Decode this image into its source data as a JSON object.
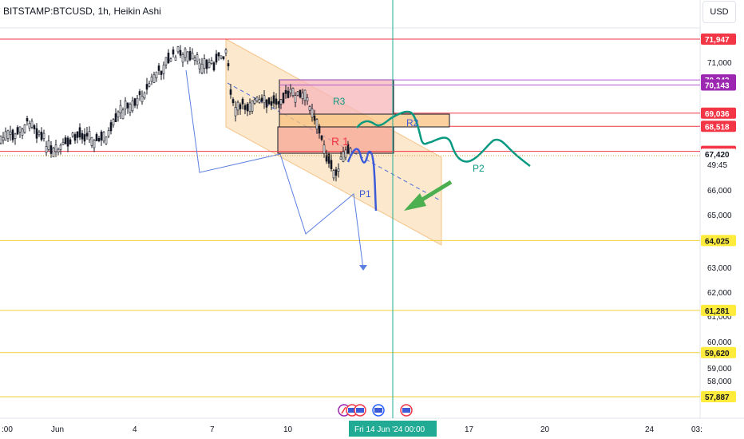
{
  "header": {
    "symbol_title": "BITSTAMP:BTCUSD, 1h, Heikin Ashi",
    "currency_button": "USD"
  },
  "price_axis": {
    "ticks": [
      "71,000",
      "66,000",
      "65,000",
      "63,000",
      "62,000",
      "61,000",
      "60,000",
      "59,000",
      "58,000"
    ],
    "countdown": "49:45"
  },
  "price_tags": [
    {
      "value": 71947,
      "label": "71,947",
      "bg": "#f23645",
      "fg": "#ffffff"
    },
    {
      "value": 70343,
      "label": "70,343",
      "bg": "#9c27b0",
      "fg": "#ffffff"
    },
    {
      "value": 70143,
      "label": "70,143",
      "bg": "#9c27b0",
      "fg": "#ffffff"
    },
    {
      "value": 69036,
      "label": "69,036",
      "bg": "#f23645",
      "fg": "#ffffff"
    },
    {
      "value": 68518,
      "label": "68,518",
      "bg": "#f23645",
      "fg": "#ffffff"
    },
    {
      "value": 67532,
      "label": "67,532",
      "bg": "#f23645",
      "fg": "#ffffff"
    },
    {
      "value": 67420,
      "label": "67,420",
      "bg": "#ffffff",
      "fg": "#131722"
    },
    {
      "value": 64025,
      "label": "64,025",
      "bg": "#ffeb3b",
      "fg": "#131722"
    },
    {
      "value": 61281,
      "label": "61,281",
      "bg": "#ffeb3b",
      "fg": "#131722"
    },
    {
      "value": 59620,
      "label": "59,620",
      "bg": "#ffeb3b",
      "fg": "#131722"
    },
    {
      "value": 57887,
      "label": "57,887",
      "bg": "#ffeb3b",
      "fg": "#131722"
    }
  ],
  "time_axis": {
    "ticks": [
      ":00",
      "Jun",
      "4",
      "7",
      "10",
      "17",
      "20",
      "24",
      "03:"
    ],
    "cursor_label": "Fri 14 Jun '24   00:00"
  },
  "drawings": {
    "zone_labels": [
      "R3",
      "R2",
      "R 1"
    ],
    "path_labels": [
      "P1",
      "P2"
    ]
  },
  "colors": {
    "support": "#ffeb3b",
    "resistance": "#f23645",
    "purple": "#9c27b0",
    "channel_fill": "#f9d8ac",
    "crosshair": "#22ab94",
    "path_blue": "#3d5bd9",
    "path_green": "#089981",
    "arrow_green": "#4caf50",
    "candle": "#131722"
  },
  "icons": [
    "flag-icon",
    "event-icon",
    "us-economic-event-icon"
  ],
  "chart_data": {
    "type": "candlestick",
    "title": "BITSTAMP:BTCUSD, 1h, Heikin Ashi",
    "xlabel": "",
    "ylabel": "",
    "ylim": [
      57500,
      72500
    ],
    "horizontal_levels": [
      71947,
      70343,
      70143,
      69036,
      68518,
      67532,
      67420,
      64025,
      61281,
      59620,
      57887
    ],
    "last_price": 67420,
    "crosshair_time": "Fri 14 Jun '24 00:00"
  }
}
